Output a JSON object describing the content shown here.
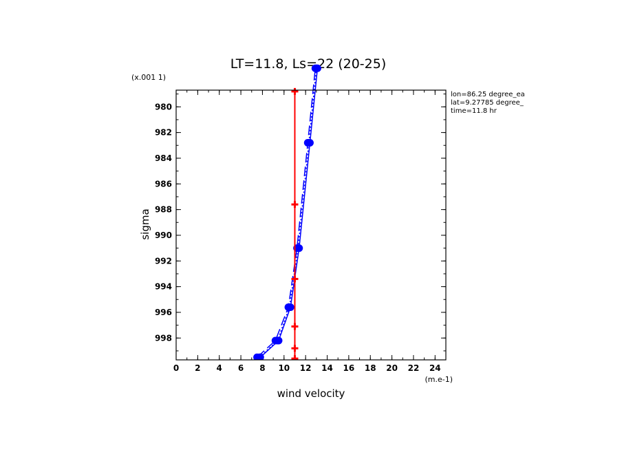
{
  "chart_data": {
    "type": "line",
    "title": "LT=11.8, Ls=22 (20-25)",
    "xlabel": "wind velocity",
    "ylabel": "sigma",
    "x_unit_label": "(m.e-1)",
    "y_unit_label": "(x.001 1)",
    "xlim": [
      0,
      25
    ],
    "ylim": [
      999.7,
      978.7
    ],
    "y_inverted": true,
    "x_ticks": [
      0,
      2,
      4,
      6,
      8,
      10,
      12,
      14,
      16,
      18,
      20,
      22,
      24
    ],
    "y_ticks": [
      980,
      982,
      984,
      986,
      988,
      990,
      992,
      994,
      996,
      998
    ],
    "info_lines": [
      "lon=86.25 degree_ea",
      "lat=9.27785 degree_",
      "time=11.8 hr"
    ],
    "series": [
      {
        "color": "#0000ff",
        "line_style": "solid",
        "marker": "circle",
        "points": [
          [
            7.8,
            999.5
          ],
          [
            9.5,
            998.2
          ],
          [
            10.6,
            995.6
          ],
          [
            11.4,
            991.0
          ],
          [
            12.4,
            982.8
          ],
          [
            13.1,
            977.0
          ]
        ]
      },
      {
        "color": "#0000ff",
        "line_style": "dashed",
        "marker": "circle",
        "points": [
          [
            7.5,
            999.5
          ],
          [
            9.2,
            998.2
          ],
          [
            10.4,
            995.6
          ],
          [
            11.2,
            991.0
          ],
          [
            12.2,
            982.8
          ],
          [
            12.9,
            977.0
          ]
        ]
      },
      {
        "color": "#0000ff",
        "line_style": "dotted",
        "marker": "circle",
        "points": [
          [
            7.7,
            999.5
          ],
          [
            9.4,
            998.2
          ],
          [
            10.5,
            995.6
          ],
          [
            11.3,
            991.0
          ],
          [
            12.3,
            982.8
          ],
          [
            13.0,
            977.0
          ]
        ]
      },
      {
        "color": "#ff0000",
        "line_style": "solid",
        "marker": "cross",
        "points": [
          [
            11.0,
            978.8
          ],
          [
            11.0,
            987.6
          ],
          [
            11.0,
            993.4
          ],
          [
            11.0,
            997.1
          ],
          [
            11.0,
            998.8
          ],
          [
            11.0,
            999.6
          ]
        ]
      }
    ]
  }
}
